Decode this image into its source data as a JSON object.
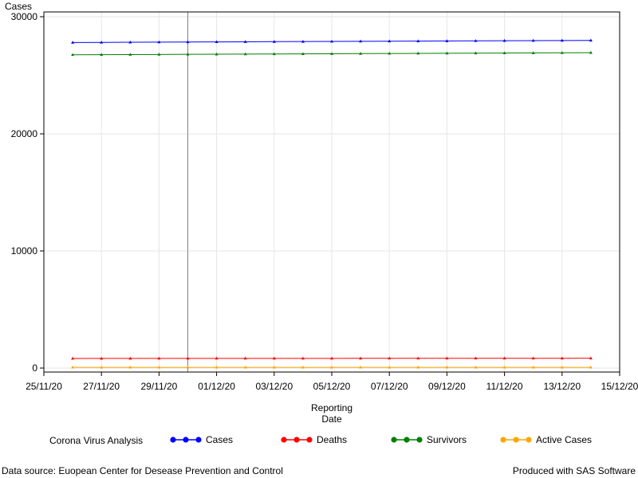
{
  "chart_data": {
    "type": "line",
    "ylabel": "Cases",
    "xlabel_lines": [
      "Reporting",
      "Date"
    ],
    "ylim": [
      0,
      30000
    ],
    "yticks": [
      0,
      10000,
      20000,
      30000
    ],
    "xlim": [
      "2020-11-25",
      "2020-12-15"
    ],
    "xticks": [
      "2020-11-25",
      "2020-11-27",
      "2020-11-29",
      "2020-12-01",
      "2020-12-03",
      "2020-12-05",
      "2020-12-07",
      "2020-12-09",
      "2020-12-11",
      "2020-12-13",
      "2020-12-15"
    ],
    "xtick_labels": [
      "25/11/20",
      "27/11/20",
      "29/11/20",
      "01/12/20",
      "03/12/20",
      "05/12/20",
      "07/12/20",
      "09/12/20",
      "11/12/20",
      "13/12/20",
      "15/12/20"
    ],
    "reference_line_x": "2020-11-30",
    "x": [
      "2020-11-26",
      "2020-11-27",
      "2020-11-28",
      "2020-11-29",
      "2020-11-30",
      "2020-12-01",
      "2020-12-02",
      "2020-12-03",
      "2020-12-04",
      "2020-12-05",
      "2020-12-06",
      "2020-12-07",
      "2020-12-08",
      "2020-12-09",
      "2020-12-10",
      "2020-12-11",
      "2020-12-12",
      "2020-12-13",
      "2020-12-14"
    ],
    "series": [
      {
        "name": "Cases",
        "color": "#0000ff",
        "values": [
          27800,
          27810,
          27820,
          27830,
          27840,
          27850,
          27860,
          27870,
          27880,
          27890,
          27900,
          27910,
          27920,
          27930,
          27940,
          27950,
          27960,
          27970,
          27980
        ]
      },
      {
        "name": "Deaths",
        "color": "#ff0000",
        "values": [
          820,
          821,
          822,
          823,
          824,
          825,
          826,
          827,
          828,
          829,
          830,
          831,
          832,
          833,
          834,
          835,
          836,
          837,
          838
        ]
      },
      {
        "name": "Survivors",
        "color": "#008000",
        "values": [
          26750,
          26760,
          26770,
          26780,
          26790,
          26800,
          26810,
          26820,
          26830,
          26840,
          26850,
          26860,
          26870,
          26880,
          26890,
          26900,
          26910,
          26920,
          26930
        ]
      },
      {
        "name": "Active Cases",
        "color": "#ffa500",
        "values": [
          60,
          60,
          60,
          60,
          60,
          60,
          60,
          60,
          60,
          60,
          60,
          60,
          60,
          60,
          60,
          60,
          60,
          60,
          60
        ]
      }
    ],
    "legend_title": "Corona Virus Analysis",
    "legend_position": "bottom"
  },
  "footer": {
    "source": "Data source: Euopean Center for Desease Prevention and Control",
    "credit": "Produced with SAS Software"
  }
}
